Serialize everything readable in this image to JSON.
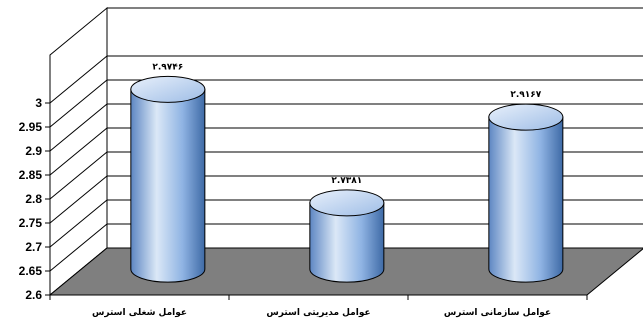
{
  "chart_data": {
    "type": "bar",
    "style": "3d-cylinder",
    "categories": [
      "عوامل شغلی استرس",
      "عوامل مدیریتی استرس",
      "عوامل سازمانی استرس"
    ],
    "values": [
      2.9746,
      2.7381,
      2.9167
    ],
    "data_labels": [
      "۲.۹۷۴۶",
      "۲.۷۳۸۱",
      "۲.۹۱۶۷"
    ],
    "y_ticks": [
      "2.6",
      "2.65",
      "2.7",
      "2.75",
      "2.8",
      "2.85",
      "2.9",
      "2.95",
      "3"
    ],
    "ylim": [
      2.6,
      3.0
    ],
    "grid": true,
    "legend": "none",
    "title": "",
    "xlabel": "",
    "ylabel": "",
    "colors": {
      "bar_light": "#dbe8f7",
      "bar_mid": "#8fb3e3",
      "bar_dark": "#3e6aa6",
      "floor": "#7f7f7f",
      "wall": "#ffffff",
      "grid": "#000000"
    }
  }
}
